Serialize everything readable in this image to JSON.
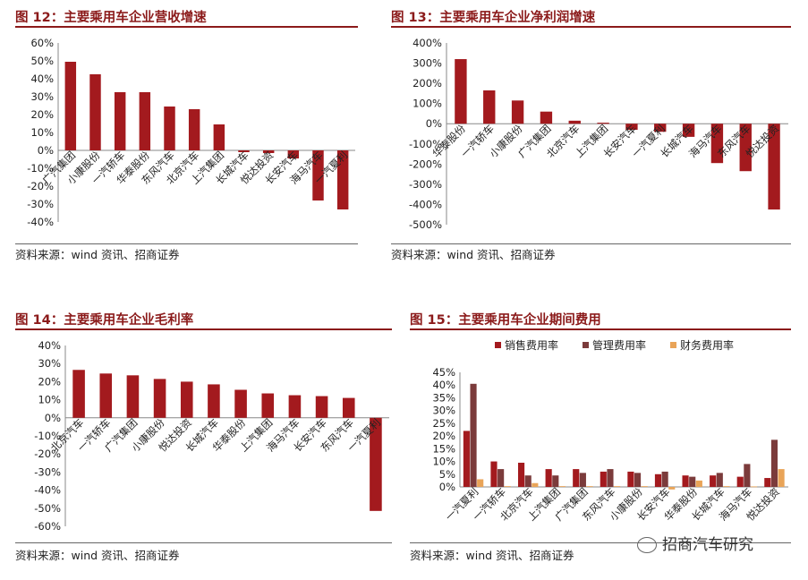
{
  "charts": [
    {
      "title": "图 12：主要乘用车企业营收增速",
      "source": "资料来源：wind 资讯、招商证券",
      "chart_data": {
        "type": "bar",
        "categories": [
          "广汽集团",
          "小康股份",
          "一汽轿车",
          "华泰股份",
          "东风汽车",
          "北京汽车",
          "上汽集团",
          "长城汽车",
          "悦达投资",
          "长安汽车",
          "海马汽车",
          "一汽夏利"
        ],
        "values": [
          49.5,
          42.5,
          32.5,
          32.5,
          24.5,
          23,
          14.5,
          -1,
          -1.5,
          -4.5,
          -28,
          -33
        ],
        "ylim": [
          -40,
          60
        ],
        "yticks": [
          "-40%",
          "-30%",
          "-20%",
          "-10%",
          "0%",
          "10%",
          "20%",
          "30%",
          "40%",
          "50%",
          "60%"
        ],
        "color": "#a31a1e"
      }
    },
    {
      "title": "图 13：主要乘用车企业净利润增速",
      "source": "资料来源：wind 资讯、招商证券",
      "chart_data": {
        "type": "bar",
        "categories": [
          "华泰股份",
          "一汽轿车",
          "小康股份",
          "广汽集团",
          "北京汽车",
          "上汽集团",
          "长安汽车",
          "一汽夏利",
          "长城汽车",
          "海马汽车",
          "东风汽车",
          "悦达投资"
        ],
        "values": [
          320,
          165,
          115,
          60,
          15,
          5,
          -30,
          -40,
          -65,
          -195,
          -235,
          -425
        ],
        "ylim": [
          -500,
          400
        ],
        "yticks": [
          "-500%",
          "-400%",
          "-300%",
          "-200%",
          "-100%",
          "0%",
          "100%",
          "200%",
          "300%",
          "400%"
        ],
        "color": "#a31a1e"
      }
    },
    {
      "title": "图 14：主要乘用车企业毛利率",
      "source": "资料来源：wind 资讯、招商证券",
      "chart_data": {
        "type": "bar",
        "categories": [
          "北京汽车",
          "一汽轿车",
          "广汽集团",
          "小康股份",
          "悦达投资",
          "长城汽车",
          "华泰股份",
          "上汽集团",
          "海马汽车",
          "长安汽车",
          "东风汽车",
          "一汽夏利"
        ],
        "values": [
          26.5,
          24.5,
          23.5,
          21.5,
          20,
          18.5,
          15.5,
          13.5,
          12.5,
          12,
          11,
          -51.5
        ],
        "ylim": [
          -60,
          40
        ],
        "yticks": [
          "-60%",
          "-50%",
          "-40%",
          "-30%",
          "-20%",
          "-10%",
          "0%",
          "10%",
          "20%",
          "30%",
          "40%"
        ],
        "color": "#a31a1e"
      }
    },
    {
      "title": "图 15：主要乘用车企业期间费用",
      "source": "资料来源：wind 资讯、招商证券",
      "chart_data": {
        "type": "bar",
        "categories": [
          "一汽夏利",
          "一汽轿车",
          "北京汽车",
          "上汽集团",
          "广汽集团",
          "东风汽车",
          "小康股份",
          "长安汽车",
          "华泰股份",
          "长城汽车",
          "海马汽车",
          "悦达投资"
        ],
        "series": [
          {
            "name": "销售费用率",
            "color": "#a31a1e",
            "values": [
              22,
              10,
              9.5,
              7,
              7,
              6,
              6,
              5,
              4.5,
              4.5,
              4,
              3.5
            ]
          },
          {
            "name": "管理费用率",
            "color": "#7b3b3b",
            "values": [
              40.5,
              7,
              4.5,
              4.5,
              5.5,
              7,
              5.5,
              6,
              4,
              5.5,
              9,
              18.5
            ]
          },
          {
            "name": "财务费用率",
            "color": "#e9a458",
            "values": [
              3,
              0.3,
              1.5,
              0.3,
              0.3,
              0.3,
              0.3,
              -1,
              2.5,
              0.3,
              0.2,
              7
            ]
          }
        ],
        "ylim": [
          0,
          45
        ],
        "yticks": [
          "0%",
          "5%",
          "10%",
          "15%",
          "20%",
          "25%",
          "30%",
          "35%",
          "40%",
          "45%"
        ],
        "legend": "top"
      }
    }
  ],
  "watermark": "招商汽车研究"
}
